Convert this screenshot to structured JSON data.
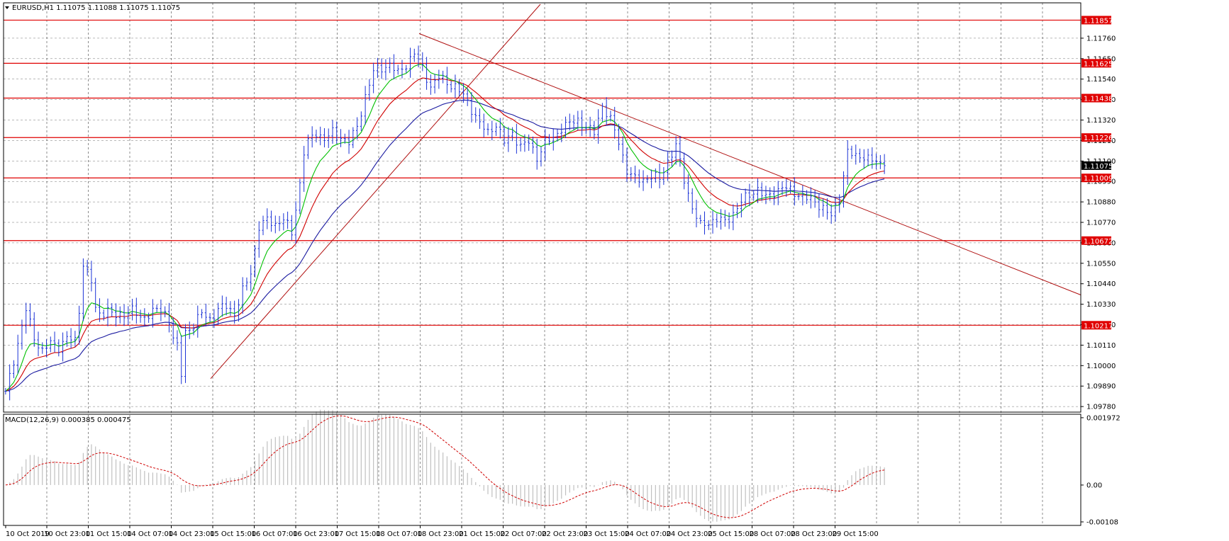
{
  "header": {
    "symbol_info": "EURUSD,H1  1.11075 1.11088 1.11075 1.11075",
    "macd_info": "MACD(12,26,9) 0.000385 0.000475"
  },
  "colors": {
    "candles": "#1c33d6",
    "ma_fast": "#00c000",
    "ma_mid": "#d00000",
    "ma_slow": "#1a1aa0",
    "level": "#e00000",
    "trend": "#b01010",
    "macd_hist": "#c0c0c0",
    "macd_signal": "#d00000"
  },
  "chart_data": {
    "type": "candlestick",
    "symbol": "EURUSD",
    "timeframe": "H1",
    "ylim": [
      1.0975,
      1.1195
    ],
    "y_ticks": [
      "1.11760",
      "1.11650",
      "1.11540",
      "1.11430",
      "1.11320",
      "1.11210",
      "1.11100",
      "1.10990",
      "1.10880",
      "1.10770",
      "1.10660",
      "1.10550",
      "1.10440",
      "1.10330",
      "1.10220",
      "1.10110",
      "1.10000",
      "1.09890",
      "1.09780"
    ],
    "x_ticks": [
      "10 Oct 2019",
      "10 Oct 23:00",
      "11 Oct 15:00",
      "14 Oct 07:00",
      "14 Oct 23:00",
      "15 Oct 15:00",
      "16 Oct 07:00",
      "16 Oct 23:00",
      "17 Oct 15:00",
      "18 Oct 07:00",
      "18 Oct 23:00",
      "21 Oct 15:00",
      "22 Oct 07:00",
      "22 Oct 23:00",
      "23 Oct 15:00",
      "24 Oct 07:00",
      "24 Oct 23:00",
      "25 Oct 15:00",
      "28 Oct 07:00",
      "28 Oct 23:00",
      "29 Oct 15:00"
    ],
    "levels": [
      {
        "value": 1.11857,
        "label": "1.11857"
      },
      {
        "value": 1.11625,
        "label": "1.11625"
      },
      {
        "value": 1.11438,
        "label": "1.11438"
      },
      {
        "value": 1.11226,
        "label": "1.11226"
      },
      {
        "value": 1.11009,
        "label": "1.11009"
      },
      {
        "value": 1.10672,
        "label": "1.10672"
      },
      {
        "value": 1.10217,
        "label": "1.10217"
      }
    ],
    "current_price": {
      "value": 1.11075,
      "label": "1.11075"
    },
    "price_path": [
      [
        0,
        1.0985
      ],
      [
        3,
        1.1012
      ],
      [
        5,
        1.103
      ],
      [
        7,
        1.1015
      ],
      [
        9,
        1.1008
      ],
      [
        11,
        1.1012
      ],
      [
        13,
        1.101
      ],
      [
        15,
        1.1015
      ],
      [
        17,
        1.1013
      ],
      [
        18,
        1.103
      ],
      [
        19,
        1.1055
      ],
      [
        20,
        1.105
      ],
      [
        21,
        1.1045
      ],
      [
        22,
        1.103
      ],
      [
        23,
        1.1028
      ],
      [
        25,
        1.103
      ],
      [
        27,
        1.1026
      ],
      [
        29,
        1.1028
      ],
      [
        31,
        1.103
      ],
      [
        33,
        1.1025
      ],
      [
        35,
        1.1028
      ],
      [
        37,
        1.103
      ],
      [
        39,
        1.1028
      ],
      [
        40,
        1.1025
      ],
      [
        41,
        1.1015
      ],
      [
        42,
        1.101
      ],
      [
        43,
        1.0995
      ],
      [
        44,
        1.1018
      ],
      [
        46,
        1.1022
      ],
      [
        48,
        1.1028
      ],
      [
        50,
        1.1025
      ],
      [
        52,
        1.103
      ],
      [
        54,
        1.1032
      ],
      [
        56,
        1.1028
      ],
      [
        58,
        1.104
      ],
      [
        60,
        1.105
      ],
      [
        62,
        1.1075
      ],
      [
        64,
        1.1078
      ],
      [
        66,
        1.1076
      ],
      [
        68,
        1.1079
      ],
      [
        70,
        1.1071
      ],
      [
        72,
        1.1098
      ],
      [
        73,
        1.1115
      ],
      [
        74,
        1.112
      ],
      [
        76,
        1.1125
      ],
      [
        78,
        1.1122
      ],
      [
        80,
        1.1125
      ],
      [
        82,
        1.1123
      ],
      [
        84,
        1.112
      ],
      [
        86,
        1.1128
      ],
      [
        88,
        1.1145
      ],
      [
        90,
        1.1158
      ],
      [
        92,
        1.116
      ],
      [
        94,
        1.1162
      ],
      [
        96,
        1.1157
      ],
      [
        98,
        1.1162
      ],
      [
        100,
        1.1168
      ],
      [
        102,
        1.116
      ],
      [
        104,
        1.115
      ],
      [
        106,
        1.1155
      ],
      [
        108,
        1.1152
      ],
      [
        110,
        1.115
      ],
      [
        112,
        1.1145
      ],
      [
        114,
        1.1138
      ],
      [
        116,
        1.113
      ],
      [
        118,
        1.1125
      ],
      [
        120,
        1.113
      ],
      [
        122,
        1.112
      ],
      [
        124,
        1.1125
      ],
      [
        126,
        1.1118
      ],
      [
        128,
        1.112
      ],
      [
        130,
        1.1112
      ],
      [
        132,
        1.112
      ],
      [
        134,
        1.1122
      ],
      [
        136,
        1.1128
      ],
      [
        138,
        1.113
      ],
      [
        140,
        1.1132
      ],
      [
        142,
        1.1128
      ],
      [
        144,
        1.1125
      ],
      [
        146,
        1.114
      ],
      [
        148,
        1.1132
      ],
      [
        150,
        1.112
      ],
      [
        152,
        1.1105
      ],
      [
        154,
        1.11
      ],
      [
        156,
        1.11
      ],
      [
        158,
        1.1102
      ],
      [
        160,
        1.11
      ],
      [
        162,
        1.111
      ],
      [
        164,
        1.1118
      ],
      [
        166,
        1.11
      ],
      [
        168,
        1.1085
      ],
      [
        170,
        1.1075
      ],
      [
        172,
        1.1077
      ],
      [
        174,
        1.1079
      ],
      [
        176,
        1.1077
      ],
      [
        178,
        1.1082
      ],
      [
        180,
        1.1088
      ],
      [
        182,
        1.1092
      ],
      [
        184,
        1.1095
      ],
      [
        186,
        1.109
      ],
      [
        188,
        1.1093
      ],
      [
        190,
        1.1096
      ],
      [
        192,
        1.1094
      ],
      [
        194,
        1.1092
      ],
      [
        196,
        1.109
      ],
      [
        198,
        1.1088
      ],
      [
        200,
        1.1085
      ],
      [
        202,
        1.108
      ],
      [
        204,
        1.109
      ],
      [
        206,
        1.1115
      ],
      [
        208,
        1.1112
      ],
      [
        210,
        1.1113
      ],
      [
        212,
        1.111
      ],
      [
        214,
        1.1108
      ],
      [
        215,
        1.11075
      ]
    ],
    "indicator": {
      "name": "MACD(12,26,9)",
      "main": 0.000385,
      "signal": 0.000475,
      "ylim": [
        -0.00108,
        0.00197
      ],
      "y_ticks": [
        "0.001972",
        "0.00",
        "-0.00108"
      ]
    }
  }
}
